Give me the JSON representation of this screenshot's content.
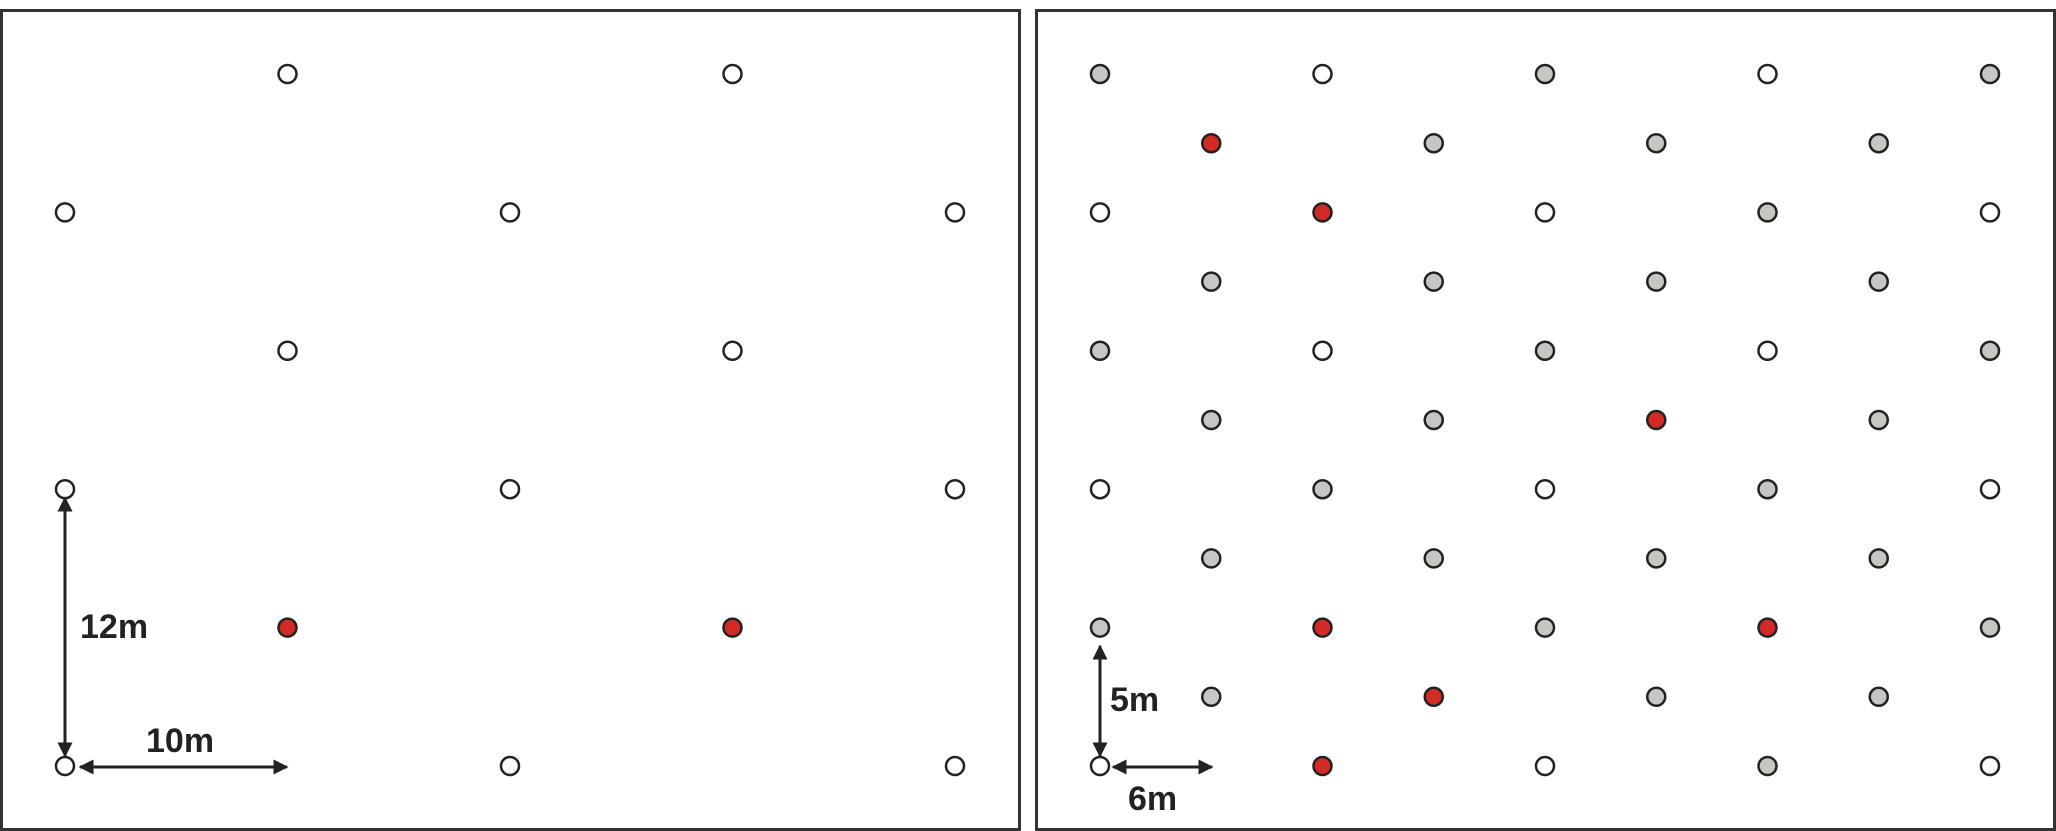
{
  "colors": {
    "empty_tree": "#ffffff",
    "grey_tree": "#c8c6c3",
    "red_tree": "#d32a26",
    "outline": "#222222",
    "frame": "#333333"
  },
  "panels": [
    {
      "id": "left",
      "vertical_spacing_label": "12m",
      "horizontal_spacing_label": "10m",
      "grid": {
        "rows": 11,
        "cols": 5,
        "row_spacing_m": 6,
        "col_spacing_m": 10
      },
      "trees": [
        {
          "row": 0,
          "col": 1,
          "type": "empty"
        },
        {
          "row": 0,
          "col": 3,
          "type": "empty"
        },
        {
          "row": 2,
          "col": 0,
          "type": "empty"
        },
        {
          "row": 2,
          "col": 2,
          "type": "empty"
        },
        {
          "row": 2,
          "col": 4,
          "type": "empty"
        },
        {
          "row": 4,
          "col": 1,
          "type": "empty"
        },
        {
          "row": 4,
          "col": 3,
          "type": "empty"
        },
        {
          "row": 6,
          "col": 0,
          "type": "empty"
        },
        {
          "row": 6,
          "col": 2,
          "type": "empty"
        },
        {
          "row": 6,
          "col": 4,
          "type": "empty"
        },
        {
          "row": 8,
          "col": 1,
          "type": "red"
        },
        {
          "row": 8,
          "col": 3,
          "type": "red"
        },
        {
          "row": 10,
          "col": 0,
          "type": "empty"
        },
        {
          "row": 10,
          "col": 2,
          "type": "empty"
        },
        {
          "row": 10,
          "col": 4,
          "type": "empty"
        }
      ]
    },
    {
      "id": "right",
      "vertical_spacing_label": "5m",
      "horizontal_spacing_label": "6m",
      "grid": {
        "rows": 11,
        "cols": 9,
        "row_spacing_m": 5,
        "col_spacing_m": 6
      },
      "trees": [
        {
          "row": 0,
          "col": 0,
          "type": "grey"
        },
        {
          "row": 0,
          "col": 2,
          "type": "empty"
        },
        {
          "row": 0,
          "col": 4,
          "type": "grey"
        },
        {
          "row": 0,
          "col": 6,
          "type": "empty"
        },
        {
          "row": 0,
          "col": 8,
          "type": "grey"
        },
        {
          "row": 1,
          "col": 1,
          "type": "red"
        },
        {
          "row": 1,
          "col": 3,
          "type": "grey"
        },
        {
          "row": 1,
          "col": 5,
          "type": "grey"
        },
        {
          "row": 1,
          "col": 7,
          "type": "grey"
        },
        {
          "row": 2,
          "col": 0,
          "type": "empty"
        },
        {
          "row": 2,
          "col": 2,
          "type": "red"
        },
        {
          "row": 2,
          "col": 4,
          "type": "empty"
        },
        {
          "row": 2,
          "col": 6,
          "type": "grey"
        },
        {
          "row": 2,
          "col": 8,
          "type": "empty"
        },
        {
          "row": 3,
          "col": 1,
          "type": "grey"
        },
        {
          "row": 3,
          "col": 3,
          "type": "grey"
        },
        {
          "row": 3,
          "col": 5,
          "type": "grey"
        },
        {
          "row": 3,
          "col": 7,
          "type": "grey"
        },
        {
          "row": 4,
          "col": 0,
          "type": "grey"
        },
        {
          "row": 4,
          "col": 2,
          "type": "empty"
        },
        {
          "row": 4,
          "col": 4,
          "type": "grey"
        },
        {
          "row": 4,
          "col": 6,
          "type": "empty"
        },
        {
          "row": 4,
          "col": 8,
          "type": "grey"
        },
        {
          "row": 5,
          "col": 1,
          "type": "grey"
        },
        {
          "row": 5,
          "col": 3,
          "type": "grey"
        },
        {
          "row": 5,
          "col": 5,
          "type": "red"
        },
        {
          "row": 5,
          "col": 7,
          "type": "grey"
        },
        {
          "row": 6,
          "col": 0,
          "type": "empty"
        },
        {
          "row": 6,
          "col": 2,
          "type": "grey"
        },
        {
          "row": 6,
          "col": 4,
          "type": "empty"
        },
        {
          "row": 6,
          "col": 6,
          "type": "grey"
        },
        {
          "row": 6,
          "col": 8,
          "type": "empty"
        },
        {
          "row": 7,
          "col": 1,
          "type": "grey"
        },
        {
          "row": 7,
          "col": 3,
          "type": "grey"
        },
        {
          "row": 7,
          "col": 5,
          "type": "grey"
        },
        {
          "row": 7,
          "col": 7,
          "type": "grey"
        },
        {
          "row": 8,
          "col": 0,
          "type": "grey"
        },
        {
          "row": 8,
          "col": 2,
          "type": "red"
        },
        {
          "row": 8,
          "col": 4,
          "type": "grey"
        },
        {
          "row": 8,
          "col": 6,
          "type": "red"
        },
        {
          "row": 8,
          "col": 8,
          "type": "grey"
        },
        {
          "row": 9,
          "col": 1,
          "type": "grey"
        },
        {
          "row": 9,
          "col": 3,
          "type": "red"
        },
        {
          "row": 9,
          "col": 5,
          "type": "grey"
        },
        {
          "row": 9,
          "col": 7,
          "type": "grey"
        },
        {
          "row": 10,
          "col": 0,
          "type": "empty"
        },
        {
          "row": 10,
          "col": 2,
          "type": "red"
        },
        {
          "row": 10,
          "col": 4,
          "type": "empty"
        },
        {
          "row": 10,
          "col": 6,
          "type": "grey"
        },
        {
          "row": 10,
          "col": 8,
          "type": "empty"
        }
      ]
    }
  ]
}
